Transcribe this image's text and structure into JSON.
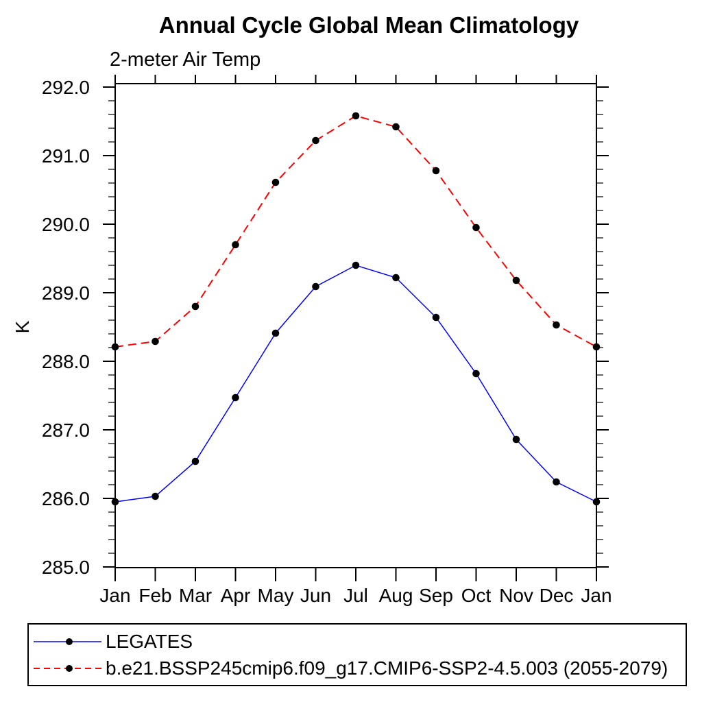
{
  "chart": {
    "title": "Annual Cycle Global Mean Climatology",
    "subtitle": "2-meter Air Temp",
    "chart_data": {
      "type": "line",
      "x_categories": [
        "Jan",
        "Feb",
        "Mar",
        "Apr",
        "May",
        "Jun",
        "Jul",
        "Aug",
        "Sep",
        "Oct",
        "Nov",
        "Dec",
        "Jan"
      ],
      "xlabel": "",
      "ylabel": "K",
      "ylim": [
        285.0,
        292.0
      ],
      "y_major_step": 1.0,
      "y_minor_step": 0.2,
      "y_tick_labels": [
        "285.0",
        "286.0",
        "287.0",
        "288.0",
        "289.0",
        "290.0",
        "291.0",
        "292.0"
      ],
      "grid": false,
      "legend_position": "bottom",
      "series": [
        {
          "name": "LEGATES",
          "color": "#0000ff",
          "line_style": "solid",
          "marker": "filled-circle",
          "marker_color": "#000000",
          "values": [
            285.95,
            286.03,
            286.54,
            287.47,
            288.41,
            289.09,
            289.4,
            289.22,
            288.64,
            287.82,
            286.86,
            286.24,
            285.95
          ]
        },
        {
          "name": "b.e21.BSSP245cmip6.f09_g17.CMIP6-SSP2-4.5.003 (2055-2079)",
          "color": "#ff0000",
          "line_style": "dashed",
          "marker": "filled-circle",
          "marker_color": "#000000",
          "values": [
            288.21,
            288.29,
            288.8,
            289.7,
            290.61,
            291.22,
            291.58,
            291.42,
            290.78,
            289.95,
            289.18,
            288.53,
            288.21
          ]
        }
      ]
    },
    "colors": {
      "axis": "#000000",
      "background": "#ffffff",
      "series1": "#0000ff",
      "series2": "#ff0000",
      "marker": "#000000"
    }
  }
}
